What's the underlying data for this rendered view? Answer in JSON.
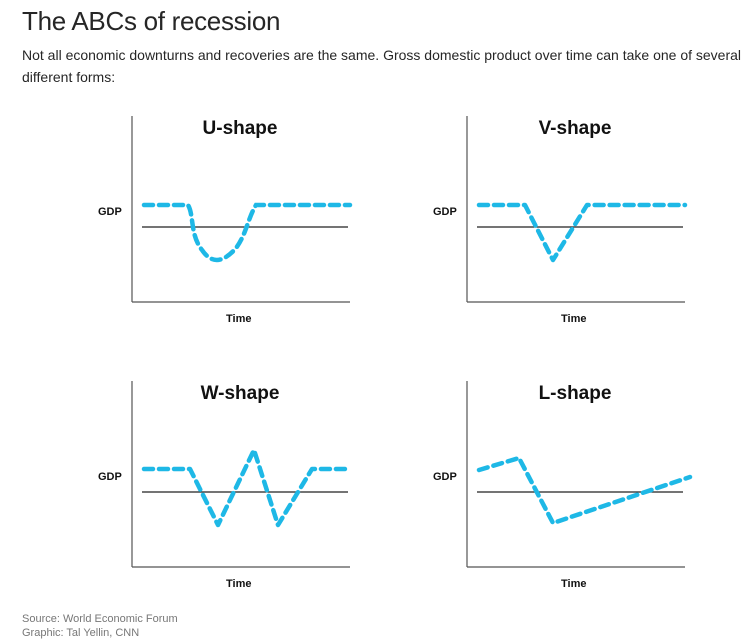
{
  "header": {
    "title": "The ABCs of recession",
    "subtitle": "Not all economic downturns and recoveries are the same. Gross domestic product over time can take one of several different forms:"
  },
  "panels": [
    {
      "title": "U-shape",
      "y_label": "GDP",
      "x_label": "Time"
    },
    {
      "title": "V-shape",
      "y_label": "GDP",
      "x_label": "Time"
    },
    {
      "title": "W-shape",
      "y_label": "GDP",
      "x_label": "Time"
    },
    {
      "title": "L-shape",
      "y_label": "GDP",
      "x_label": "Time"
    }
  ],
  "footer": {
    "source": "Source: World Economic Forum",
    "credit": "Graphic: Tal Yellin, CNN"
  },
  "colors": {
    "line": "#1eb8e6",
    "axis": "#555555",
    "baseline": "#222222"
  }
}
